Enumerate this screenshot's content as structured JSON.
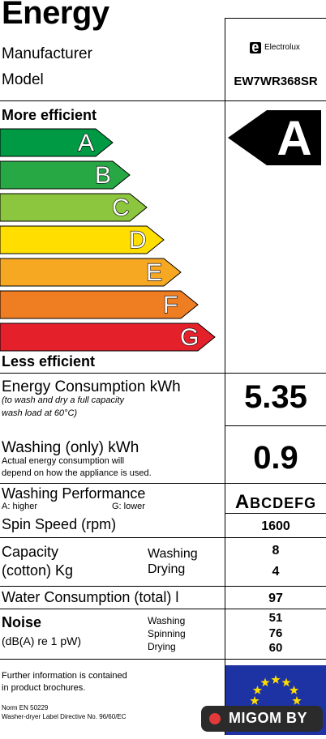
{
  "label": {
    "title": "Energy",
    "manufacturer_label": "Manufacturer",
    "model_label": "Model",
    "brand": "Electrolux",
    "brand_icon": "electrolux-logo-icon",
    "model": "EW7WR368SR"
  },
  "scale": {
    "more_efficient": "More efficient",
    "less_efficient": "Less efficient",
    "classes": [
      {
        "letter": "A",
        "color": "#009a44"
      },
      {
        "letter": "B",
        "color": "#28a745"
      },
      {
        "letter": "C",
        "color": "#8cc63f"
      },
      {
        "letter": "D",
        "color": "#ffde00"
      },
      {
        "letter": "E",
        "color": "#f7a823"
      },
      {
        "letter": "F",
        "color": "#ef7d22"
      },
      {
        "letter": "G",
        "color": "#e4202b"
      }
    ],
    "rating": "A"
  },
  "energy": {
    "label": "Energy Consumption kWh",
    "note1": "(to wash and dry a full capacity",
    "note2": "wash load at 60°C)",
    "value": "5.35"
  },
  "washing_energy": {
    "label": "Washing (only) kWh",
    "note1": "Actual energy consumption will",
    "note2": "depend on how the appliance is used.",
    "value": "0.9"
  },
  "performance": {
    "label": "Washing Performance",
    "higher": "A:  higher",
    "lower": "G:  lower",
    "scale_first": "A",
    "scale_rest": "BCDEFG"
  },
  "spin": {
    "label": "Spin Speed (rpm)",
    "value": "1600"
  },
  "capacity": {
    "label1": "Capacity",
    "label2": "(cotton) Kg",
    "washing_label": "Washing",
    "drying_label": "Drying",
    "washing_value": "8",
    "drying_value": "4"
  },
  "water": {
    "label": "Water Consumption (total) l",
    "value": "97"
  },
  "noise": {
    "label": "Noise",
    "unit": "(dB(A) re 1 pW)",
    "washing_label": "Washing",
    "spinning_label": "Spinning",
    "drying_label": "Drying",
    "washing_value": "51",
    "spinning_value": "76",
    "drying_value": "60"
  },
  "footer": {
    "info1": "Further information is contained",
    "info2": "in product brochures.",
    "norm": "Norm EN 50229",
    "directive": "Washer-dryer Label Directive No. 96/60/EC"
  },
  "watermark": {
    "text": "MIGOM BY"
  }
}
